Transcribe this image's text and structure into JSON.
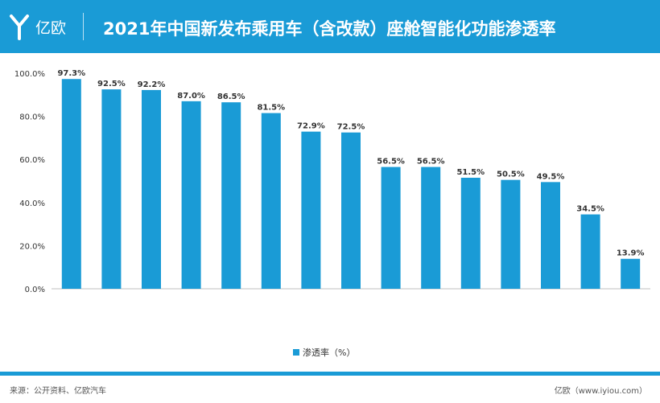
{
  "header": {
    "brand": "亿欧",
    "title": "2021年中国新发布乘用车（含改款）座舱智能化功能渗透率",
    "bg_color": "#1a9bd6"
  },
  "legend": {
    "label": "渗透率（%）"
  },
  "footer": {
    "source": "来源：公开资料、亿欧汽车",
    "site": "亿欧（www.iyiou.com）"
  },
  "chart_data": {
    "type": "bar",
    "bar_color": "#1a9bd6",
    "ylim": [
      0,
      100
    ],
    "yticks": [
      "0.0%",
      "20.0%",
      "40.0%",
      "60.0%",
      "80.0%",
      "100.0%"
    ],
    "categories": [
      "",
      "",
      "",
      "",
      "",
      "",
      "",
      "",
      "",
      "",
      "",
      "",
      "",
      "",
      ""
    ],
    "series": [
      {
        "values": [
          97.3,
          92.5,
          92.2,
          87.0,
          86.5,
          81.5,
          72.9,
          72.5,
          56.5,
          56.5,
          51.5,
          50.5,
          49.5,
          34.5,
          13.9
        ],
        "labels": [
          "97.3%",
          "92.5%",
          "92.2%",
          "87.0%",
          "86.5%",
          "81.5%",
          "72.9%",
          "72.5%",
          "56.5%",
          "56.5%",
          "51.5%",
          "50.5%",
          "49.5%",
          "34.5%",
          "13.9%"
        ]
      }
    ]
  }
}
